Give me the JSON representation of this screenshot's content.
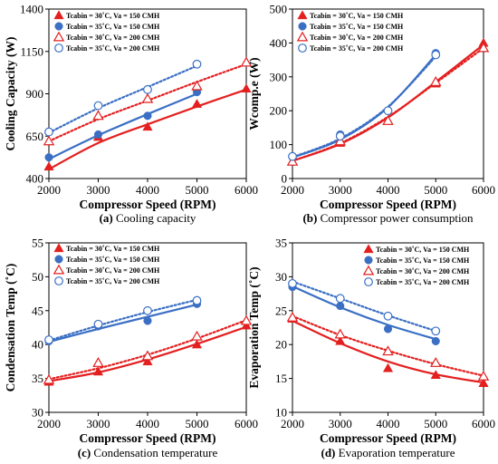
{
  "chart_data": [
    {
      "type": "scatter",
      "caption_letter": "(a)",
      "caption_text": " Cooling capacity",
      "xlabel": "Compressor Speed (RPM)",
      "ylabel": "Cooling Capacity (W)",
      "xlim": [
        2000,
        6000
      ],
      "ylim": [
        400,
        1400
      ],
      "xticks": [
        2000,
        3000,
        4000,
        5000,
        6000
      ],
      "yticks": [
        400,
        650,
        900,
        1150,
        1400
      ],
      "legend_position": "top-left",
      "series": [
        {
          "name": "Tcabin = 30˚C, Va = 150 CMH",
          "color": "#e41f1f",
          "marker": "triangle-filled",
          "line": "solid",
          "x": [
            2000,
            3000,
            4000,
            5000,
            6000
          ],
          "y": [
            470,
            645,
            705,
            840,
            930
          ],
          "fit": [
            455,
            610,
            720,
            825,
            925
          ]
        },
        {
          "name": "Tcabin = 35˚C, Va = 150 CMH",
          "color": "#3a6fc4",
          "marker": "circle-filled",
          "line": "solid",
          "x": [
            2000,
            3000,
            4000,
            5000
          ],
          "y": [
            525,
            660,
            770,
            910
          ],
          "fit": [
            515,
            655,
            780,
            900
          ]
        },
        {
          "name": "Tcabin = 30˚C, Va = 200 CMH",
          "color": "#e41f1f",
          "marker": "triangle-open",
          "line": "dotted",
          "x": [
            2000,
            3000,
            4000,
            5000,
            6000
          ],
          "y": [
            620,
            770,
            870,
            945,
            1085
          ],
          "fit": [
            620,
            750,
            860,
            970,
            1075
          ]
        },
        {
          "name": "Tcabin = 35˚C, Va = 200 CMH",
          "color": "#3a6fc4",
          "marker": "circle-open",
          "line": "dotted",
          "x": [
            2000,
            3000,
            4000,
            5000
          ],
          "y": [
            675,
            830,
            925,
            1075
          ],
          "fit": [
            670,
            815,
            940,
            1065
          ]
        }
      ]
    },
    {
      "type": "scatter",
      "caption_letter": "(b)",
      "caption_text": " Compressor power consumption",
      "xlabel": "Compressor Speed (RPM)",
      "ylabel": "Wcomp.e (W)",
      "xlim": [
        2000,
        6000
      ],
      "ylim": [
        0,
        500
      ],
      "xticks": [
        2000,
        3000,
        4000,
        5000,
        6000
      ],
      "yticks": [
        0,
        100,
        200,
        300,
        400,
        500
      ],
      "legend_position": "top-left",
      "series": [
        {
          "name": "Tcabin = 30˚C, Va = 150 CMH",
          "color": "#e41f1f",
          "marker": "triangle-filled",
          "line": "solid",
          "x": [
            2000,
            3000,
            4000,
            5000,
            6000
          ],
          "y": [
            50,
            105,
            170,
            280,
            400
          ],
          "fit": [
            52,
            102,
            180,
            285,
            395
          ]
        },
        {
          "name": "Tcabin = 35˚C, Va = 150 CMH",
          "color": "#3a6fc4",
          "marker": "circle-filled",
          "line": "solid",
          "x": [
            2000,
            3000,
            4000,
            5000
          ],
          "y": [
            65,
            130,
            200,
            370
          ],
          "fit": [
            62,
            115,
            210,
            365
          ]
        },
        {
          "name": "Tcabin = 30˚C, Va = 200 CMH",
          "color": "#e41f1f",
          "marker": "triangle-open",
          "line": "dotted",
          "x": [
            2000,
            3000,
            4000,
            5000,
            6000
          ],
          "y": [
            50,
            110,
            170,
            285,
            385
          ],
          "fit": [
            52,
            104,
            182,
            282,
            385
          ]
        },
        {
          "name": "Tcabin = 35˚C, Va = 200 CMH",
          "color": "#3a6fc4",
          "marker": "circle-open",
          "line": "dotted",
          "x": [
            2000,
            3000,
            4000,
            5000
          ],
          "y": [
            65,
            125,
            200,
            365
          ],
          "fit": [
            63,
            118,
            212,
            360
          ]
        }
      ]
    },
    {
      "type": "scatter",
      "caption_letter": "(c)",
      "caption_text": " Condensation temperature",
      "xlabel": "Compressor Speed (RPM)",
      "ylabel": "Condensation Temp (˚C)",
      "xlim": [
        2000,
        6000
      ],
      "ylim": [
        30,
        55
      ],
      "xticks": [
        2000,
        3000,
        4000,
        5000,
        6000
      ],
      "yticks": [
        30,
        35,
        40,
        45,
        50,
        55
      ],
      "legend_position": "top-left",
      "series": [
        {
          "name": "Tcabin = 30˚C, Va = 150 CMH",
          "color": "#e41f1f",
          "marker": "triangle-filled",
          "line": "solid",
          "x": [
            2000,
            3000,
            4000,
            5000,
            6000
          ],
          "y": [
            34.5,
            36.0,
            37.5,
            40.0,
            42.8
          ],
          "fit": [
            34.6,
            35.9,
            37.8,
            40.1,
            42.6
          ]
        },
        {
          "name": "Tcabin = 35˚C, Va = 150 CMH",
          "color": "#3a6fc4",
          "marker": "circle-filled",
          "line": "solid",
          "x": [
            2000,
            3000,
            4000,
            5000
          ],
          "y": [
            40.5,
            42.7,
            43.5,
            46.0
          ],
          "fit": [
            40.4,
            42.3,
            44.1,
            45.9
          ]
        },
        {
          "name": "Tcabin = 30˚C, Va = 200 CMH",
          "color": "#e41f1f",
          "marker": "triangle-open",
          "line": "dotted",
          "x": [
            2000,
            3000,
            4000,
            5000,
            6000
          ],
          "y": [
            34.8,
            37.3,
            38.3,
            41.2,
            43.5
          ],
          "fit": [
            34.9,
            36.5,
            38.5,
            40.9,
            43.6
          ]
        },
        {
          "name": "Tcabin = 35˚C, Va = 200 CMH",
          "color": "#3a6fc4",
          "marker": "circle-open",
          "line": "dotted",
          "x": [
            2000,
            3000,
            4000,
            5000
          ],
          "y": [
            40.7,
            43.0,
            45.0,
            46.5
          ],
          "fit": [
            40.6,
            42.8,
            44.8,
            46.6
          ]
        }
      ]
    },
    {
      "type": "scatter",
      "caption_letter": "(d)",
      "caption_text": " Evaporation temperature",
      "xlabel": "Compressor Speed (RPM)",
      "ylabel": "Evaporation Temp (˚C)",
      "xlim": [
        2000,
        6000
      ],
      "ylim": [
        10,
        35
      ],
      "xticks": [
        2000,
        3000,
        4000,
        5000,
        6000
      ],
      "yticks": [
        10,
        15,
        20,
        25,
        30,
        35
      ],
      "legend_position": "top-right",
      "series": [
        {
          "name": "Tcabin = 30˚C, Va = 150 CMH",
          "color": "#e41f1f",
          "marker": "triangle-filled",
          "line": "solid",
          "x": [
            2000,
            3000,
            4000,
            5000,
            6000
          ],
          "y": [
            23.8,
            20.5,
            16.5,
            15.5,
            14.3
          ],
          "fit": [
            23.5,
            20.2,
            17.5,
            15.6,
            14.4
          ]
        },
        {
          "name": "Tcabin = 35˚C, Va = 150 CMH",
          "color": "#3a6fc4",
          "marker": "circle-filled",
          "line": "solid",
          "x": [
            2000,
            3000,
            4000,
            5000
          ],
          "y": [
            28.5,
            25.7,
            22.3,
            20.5
          ],
          "fit": [
            28.6,
            25.5,
            22.9,
            20.8
          ]
        },
        {
          "name": "Tcabin = 30˚C, Va = 200 CMH",
          "color": "#e41f1f",
          "marker": "triangle-open",
          "line": "dotted",
          "x": [
            2000,
            3000,
            4000,
            5000,
            6000
          ],
          "y": [
            24.0,
            21.5,
            19.0,
            17.3,
            15.3
          ],
          "fit": [
            24.2,
            21.4,
            19.1,
            17.1,
            15.4
          ]
        },
        {
          "name": "Tcabin = 35˚C, Va = 200 CMH",
          "color": "#3a6fc4",
          "marker": "circle-open",
          "line": "dotted",
          "x": [
            2000,
            3000,
            4000,
            5000
          ],
          "y": [
            29.0,
            26.8,
            24.2,
            22.0
          ],
          "fit": [
            29.3,
            26.8,
            24.3,
            22.0
          ]
        }
      ]
    }
  ]
}
